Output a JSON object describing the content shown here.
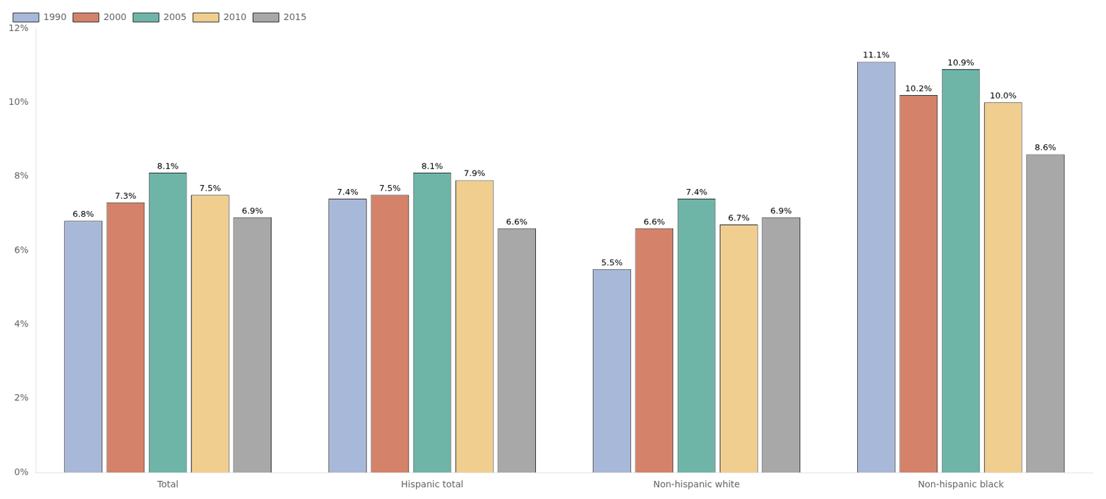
{
  "chart_data": {
    "type": "bar",
    "categories": [
      "Total",
      "Hispanic total",
      "Non-hispanic white",
      "Non-hispanic black"
    ],
    "series": [
      {
        "name": "1990",
        "color": "#a8b8d8",
        "values": [
          6.8,
          7.4,
          5.5,
          11.1
        ],
        "value_labels": [
          "6.8%",
          "7.4%",
          "5.5%",
          "11.1%"
        ]
      },
      {
        "name": "2000",
        "color": "#d4826a",
        "values": [
          7.3,
          7.5,
          6.6,
          10.2
        ],
        "value_labels": [
          "7.3%",
          "7.5%",
          "6.6%",
          "10.2%"
        ]
      },
      {
        "name": "2005",
        "color": "#6eb5a8",
        "values": [
          8.1,
          8.1,
          7.4,
          10.9
        ],
        "value_labels": [
          "8.1%",
          "8.1%",
          "7.4%",
          "10.9%"
        ]
      },
      {
        "name": "2010",
        "color": "#f0ce90",
        "values": [
          7.5,
          7.9,
          6.7,
          10.0
        ],
        "value_labels": [
          "7.5%",
          "7.9%",
          "6.7%",
          "10.0%"
        ]
      },
      {
        "name": "2015",
        "color": "#a8a8a8",
        "values": [
          6.9,
          6.6,
          6.9,
          8.6
        ],
        "value_labels": [
          "6.9%",
          "6.6%",
          "6.9%",
          "8.6%"
        ]
      }
    ],
    "ylim": [
      0,
      12
    ],
    "yticks": [
      {
        "value": 0,
        "label": "0%"
      },
      {
        "value": 2,
        "label": "2%"
      },
      {
        "value": 4,
        "label": "4%"
      },
      {
        "value": 6,
        "label": "6%"
      },
      {
        "value": 8,
        "label": "8%"
      },
      {
        "value": 10,
        "label": "10%"
      },
      {
        "value": 12,
        "label": "12%"
      }
    ],
    "grid": false,
    "legend": "upper left",
    "data_labels": true
  }
}
